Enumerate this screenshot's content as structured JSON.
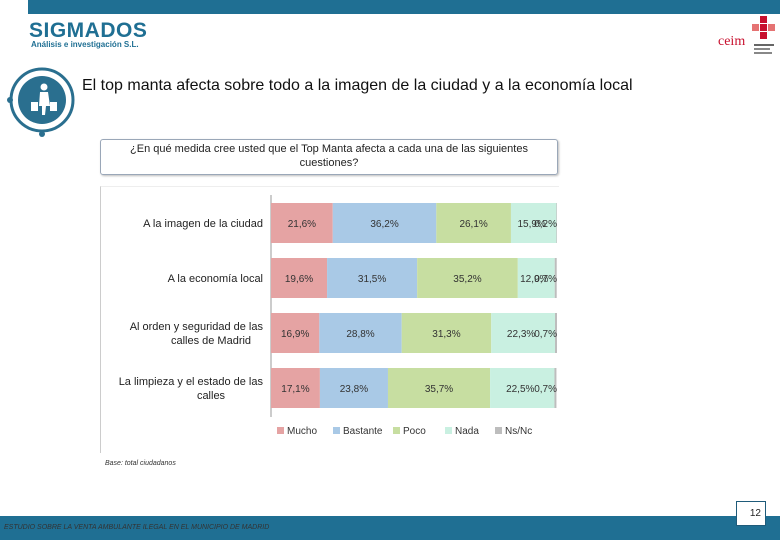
{
  "colors": {
    "brand_blue": "#1f6f93",
    "ceim_red": "#c8102e",
    "mucho": "#e5a3a3",
    "bastante": "#a9c9e6",
    "poco": "#c7dea1",
    "nada": "#c9f0e1",
    "nsnc": "#bdbdbd"
  },
  "header": {
    "logo_name": "SIGMADOS",
    "logo_subtitle": "Análisis e investigación S.L.",
    "partner_logo": "ceim"
  },
  "title": "El top manta afecta sobre todo a la imagen de la ciudad y a la economía local",
  "question": "¿En qué medida cree usted que el Top Manta afecta a cada una de las siguientes cuestiones?",
  "chart_data": {
    "type": "bar",
    "orientation": "horizontal",
    "stacked": true,
    "percent": true,
    "categories": [
      "A la imagen de la ciudad",
      "A la economía local",
      "Al orden y seguridad de las calles de Madrid",
      "La limpieza y el estado de las calles"
    ],
    "series": [
      {
        "name": "Mucho",
        "color": "#e5a3a3",
        "values": [
          21.6,
          19.6,
          16.9,
          17.1
        ],
        "labels": [
          "21,6%",
          "19,6%",
          "16,9%",
          "17,1%"
        ]
      },
      {
        "name": "Bastante",
        "color": "#a9c9e6",
        "values": [
          36.2,
          31.5,
          28.8,
          23.8
        ],
        "labels": [
          "36,2%",
          "31,5%",
          "28,8%",
          "23,8%"
        ]
      },
      {
        "name": "Poco",
        "color": "#c7dea1",
        "values": [
          26.1,
          35.2,
          31.3,
          35.7
        ],
        "labels": [
          "26,1%",
          "35,2%",
          "31,3%",
          "35,7%"
        ]
      },
      {
        "name": "Nada",
        "color": "#c9f0e1",
        "values": [
          15.9,
          12.9,
          22.3,
          22.5
        ],
        "labels": [
          "15,9%",
          "12,9%",
          "22,3%",
          "22,5%"
        ]
      },
      {
        "name": "Ns/Nc",
        "color": "#bdbdbd",
        "values": [
          0.2,
          0.7,
          0.7,
          0.7
        ],
        "labels": [
          "0,2%",
          "0,7%",
          "0,7%",
          "0,7%"
        ]
      }
    ],
    "xlim": [
      0,
      100
    ],
    "legend_position": "bottom"
  },
  "base_note": "Base: total ciudadanos",
  "footer": {
    "study_title": "ESTUDIO SOBRE LA VENTA AMBULANTE ILEGAL EN EL MUNICIPIO DE MADRID",
    "page_number": "12"
  }
}
